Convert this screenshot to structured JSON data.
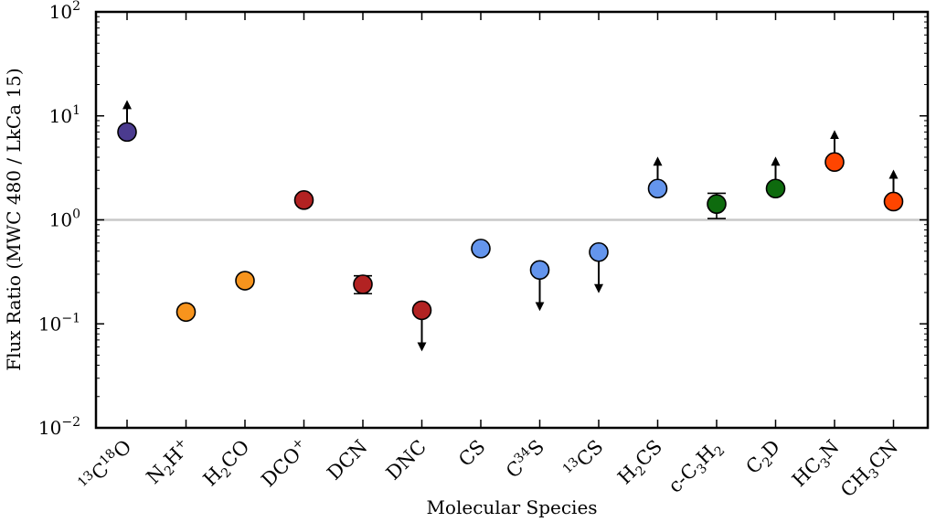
{
  "chart_data": {
    "type": "scatter",
    "xlabel": "Molecular Species",
    "ylabel": "Flux Ratio (MWC 480 / LkCa 15)",
    "yscale": "log",
    "ylim": [
      0.01,
      100
    ],
    "reference_line": 1,
    "grid": false,
    "y_ticks": [
      {
        "base": "10",
        "exp": "−2",
        "value": 0.01
      },
      {
        "base": "10",
        "exp": "−1",
        "value": 0.1
      },
      {
        "base": "10",
        "exp": "0",
        "value": 1
      },
      {
        "base": "10",
        "exp": "1",
        "value": 10
      },
      {
        "base": "10",
        "exp": "2",
        "value": 100
      }
    ],
    "categories": [
      {
        "id": "13C18O",
        "parts": [
          [
            "sup",
            "13"
          ],
          [
            "n",
            "C"
          ],
          [
            "sup",
            "18"
          ],
          [
            "n",
            "O"
          ]
        ]
      },
      {
        "id": "N2H+",
        "parts": [
          [
            "n",
            "N"
          ],
          [
            "sub",
            "2"
          ],
          [
            "n",
            "H"
          ],
          [
            "sup",
            "+"
          ]
        ]
      },
      {
        "id": "H2CO",
        "parts": [
          [
            "n",
            "H"
          ],
          [
            "sub",
            "2"
          ],
          [
            "n",
            "CO"
          ]
        ]
      },
      {
        "id": "DCO+",
        "parts": [
          [
            "n",
            "DCO"
          ],
          [
            "sup",
            "+"
          ]
        ]
      },
      {
        "id": "DCN",
        "parts": [
          [
            "n",
            "DCN"
          ]
        ]
      },
      {
        "id": "DNC",
        "parts": [
          [
            "n",
            "DNC"
          ]
        ]
      },
      {
        "id": "CS",
        "parts": [
          [
            "n",
            "CS"
          ]
        ]
      },
      {
        "id": "C34S",
        "parts": [
          [
            "n",
            "C"
          ],
          [
            "sup",
            "34"
          ],
          [
            "n",
            "S"
          ]
        ]
      },
      {
        "id": "13CS",
        "parts": [
          [
            "sup",
            "13"
          ],
          [
            "n",
            "CS"
          ]
        ]
      },
      {
        "id": "H2CS",
        "parts": [
          [
            "n",
            "H"
          ],
          [
            "sub",
            "2"
          ],
          [
            "n",
            "CS"
          ]
        ]
      },
      {
        "id": "c-C3H2",
        "parts": [
          [
            "n",
            "c-C"
          ],
          [
            "sub",
            "3"
          ],
          [
            "n",
            "H"
          ],
          [
            "sub",
            "2"
          ]
        ]
      },
      {
        "id": "C2D",
        "parts": [
          [
            "n",
            "C"
          ],
          [
            "sub",
            "2"
          ],
          [
            "n",
            "D"
          ]
        ]
      },
      {
        "id": "HC3N",
        "parts": [
          [
            "n",
            "HC"
          ],
          [
            "sub",
            "3"
          ],
          [
            "n",
            "N"
          ]
        ]
      },
      {
        "id": "CH3CN",
        "parts": [
          [
            "n",
            "CH"
          ],
          [
            "sub",
            "3"
          ],
          [
            "n",
            "CN"
          ]
        ]
      }
    ],
    "points": [
      {
        "value": 7.0,
        "color": "#4b3b8f",
        "limit": "lower",
        "err": null
      },
      {
        "value": 0.13,
        "color": "#f7941d",
        "limit": null,
        "err": null
      },
      {
        "value": 0.26,
        "color": "#f7941d",
        "limit": null,
        "err": null
      },
      {
        "value": 1.55,
        "color": "#b22222",
        "limit": null,
        "err": null
      },
      {
        "value": 0.24,
        "color": "#b22222",
        "limit": null,
        "err": [
          0.195,
          0.29
        ]
      },
      {
        "value": 0.135,
        "color": "#b22222",
        "limit": "upper",
        "err": null
      },
      {
        "value": 0.53,
        "color": "#6495ed",
        "limit": null,
        "err": null
      },
      {
        "value": 0.33,
        "color": "#6495ed",
        "limit": "upper",
        "err": null
      },
      {
        "value": 0.49,
        "color": "#6495ed",
        "limit": "upper",
        "err": null
      },
      {
        "value": 2.0,
        "color": "#6495ed",
        "limit": "lower",
        "err": null
      },
      {
        "value": 1.42,
        "color": "#0e6b0e",
        "limit": null,
        "err": [
          1.03,
          1.8
        ]
      },
      {
        "value": 2.0,
        "color": "#0e6b0e",
        "limit": "lower",
        "err": null
      },
      {
        "value": 3.6,
        "color": "#ff4500",
        "limit": "lower",
        "err": null
      },
      {
        "value": 1.5,
        "color": "#ff4500",
        "limit": "lower",
        "err": null
      }
    ]
  }
}
